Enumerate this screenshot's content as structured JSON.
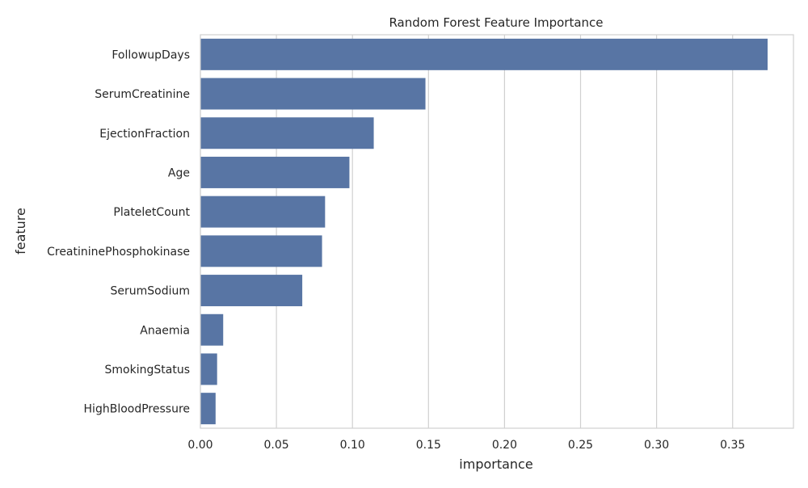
{
  "chart_data": {
    "type": "bar",
    "orientation": "horizontal",
    "title": "Random Forest Feature Importance",
    "xlabel": "importance",
    "ylabel": "feature",
    "xlim": [
      0,
      0.39
    ],
    "x_ticks": [
      0.0,
      0.05,
      0.1,
      0.15,
      0.2,
      0.25,
      0.3,
      0.35
    ],
    "x_tick_labels": [
      "0.00",
      "0.05",
      "0.10",
      "0.15",
      "0.20",
      "0.25",
      "0.30",
      "0.35"
    ],
    "grid": true,
    "categories": [
      "FollowupDays",
      "SerumCreatinine",
      "EjectionFraction",
      "Age",
      "PlateletCount",
      "CreatininePhosphokinase",
      "SerumSodium",
      "Anaemia",
      "SmokingStatus",
      "HighBloodPressure"
    ],
    "values": [
      0.373,
      0.148,
      0.114,
      0.098,
      0.082,
      0.08,
      0.067,
      0.015,
      0.011,
      0.01
    ],
    "bar_color": "#5875a4",
    "grid_color": "#d0d0d0"
  }
}
